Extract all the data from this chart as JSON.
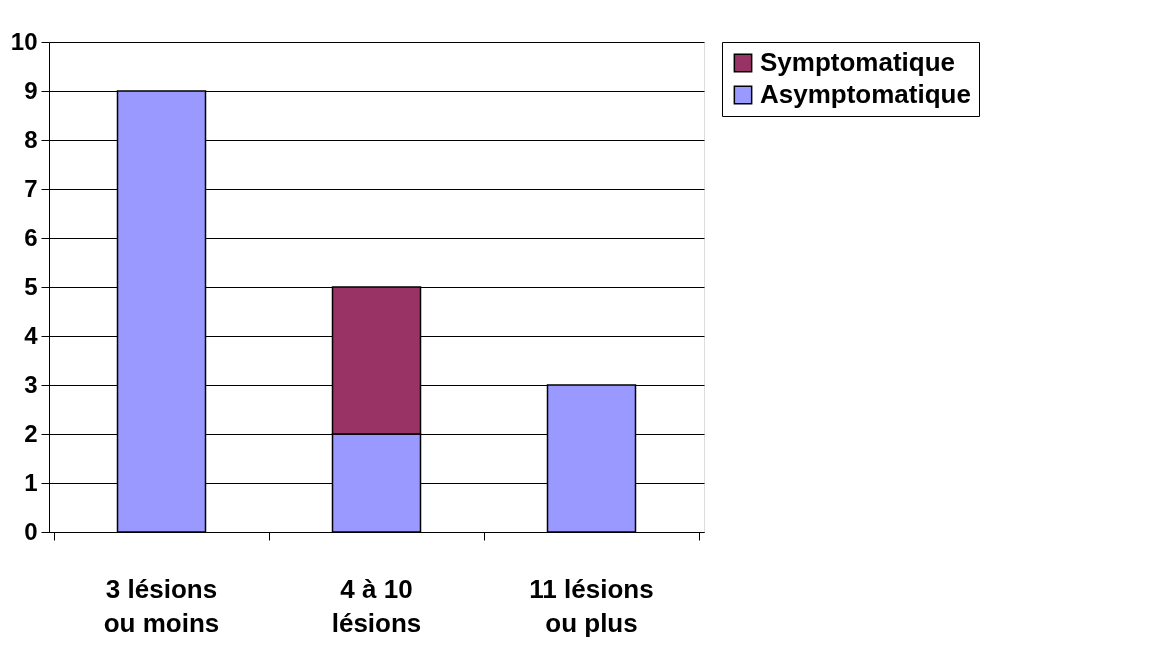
{
  "chart_data": {
    "type": "bar",
    "stacked": true,
    "categories": [
      "3 lésions\nou moins",
      "4 à 10\nlésions",
      "11 lésions\nou plus"
    ],
    "series": [
      {
        "name": "Asymptomatique",
        "color": "#9999ff",
        "values": [
          9,
          2,
          3
        ]
      },
      {
        "name": "Symptomatique",
        "color": "#993366",
        "values": [
          null,
          3,
          null
        ]
      }
    ],
    "ylim": [
      0,
      10
    ],
    "yticks": [
      0,
      1,
      2,
      3,
      4,
      5,
      6,
      7,
      8,
      9,
      10
    ],
    "grid": "y",
    "legend": "right"
  }
}
